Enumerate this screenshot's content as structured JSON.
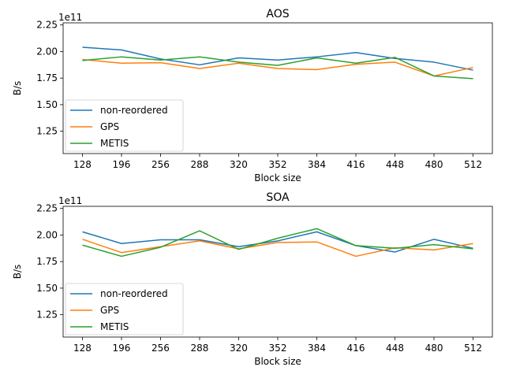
{
  "chart_data": [
    {
      "type": "line",
      "title": "AOS",
      "xlabel": "Block size",
      "ylabel": "B/s",
      "offset_text": "1e11",
      "categories": [
        "128",
        "196",
        "256",
        "288",
        "320",
        "352",
        "384",
        "416",
        "448",
        "480",
        "512"
      ],
      "ylim": [
        1.04,
        2.27
      ],
      "yticks": [
        1.25,
        1.5,
        1.75,
        2.0,
        2.25
      ],
      "ytick_labels": [
        "1.25",
        "1.50",
        "1.75",
        "2.00",
        "2.25"
      ],
      "grid": false,
      "legend": "lower-left",
      "series": [
        {
          "name": "non-reordered",
          "color": "#1f77b4",
          "values": [
            2.04,
            2.015,
            1.93,
            1.875,
            1.94,
            1.92,
            1.95,
            1.99,
            1.935,
            1.9,
            1.825
          ]
        },
        {
          "name": "GPS",
          "color": "#ff7f0e",
          "values": [
            1.925,
            1.89,
            1.895,
            1.84,
            1.89,
            1.84,
            1.83,
            1.88,
            1.9,
            1.77,
            1.85
          ]
        },
        {
          "name": "METIS",
          "color": "#2ca02c",
          "values": [
            1.915,
            1.95,
            1.92,
            1.95,
            1.9,
            1.87,
            1.94,
            1.89,
            1.945,
            1.77,
            1.745
          ]
        }
      ]
    },
    {
      "type": "line",
      "title": "SOA",
      "xlabel": "Block size",
      "ylabel": "B/s",
      "offset_text": "1e11",
      "categories": [
        "128",
        "196",
        "256",
        "288",
        "320",
        "352",
        "384",
        "416",
        "448",
        "480",
        "512"
      ],
      "ylim": [
        1.04,
        2.27
      ],
      "yticks": [
        1.25,
        1.5,
        1.75,
        2.0,
        2.25
      ],
      "ytick_labels": [
        "1.25",
        "1.50",
        "1.75",
        "2.00",
        "2.25"
      ],
      "grid": false,
      "legend": "lower-left",
      "series": [
        {
          "name": "non-reordered",
          "color": "#1f77b4",
          "values": [
            2.03,
            1.92,
            1.955,
            1.955,
            1.89,
            1.945,
            2.03,
            1.9,
            1.84,
            1.96,
            1.875
          ]
        },
        {
          "name": "GPS",
          "color": "#ff7f0e",
          "values": [
            1.96,
            1.835,
            1.89,
            1.945,
            1.87,
            1.93,
            1.935,
            1.8,
            1.88,
            1.86,
            1.92
          ]
        },
        {
          "name": "METIS",
          "color": "#2ca02c",
          "values": [
            1.905,
            1.8,
            1.885,
            2.04,
            1.865,
            1.97,
            2.06,
            1.9,
            1.875,
            1.91,
            1.87
          ]
        }
      ]
    }
  ]
}
